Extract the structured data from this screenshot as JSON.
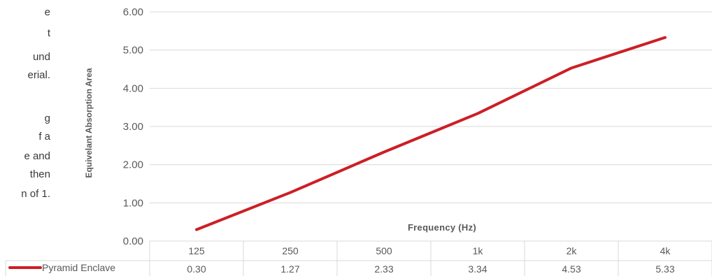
{
  "side_text": [
    "e",
    "t",
    "und",
    "erial.",
    "",
    "g",
    "f a",
    "e and",
    "then",
    "n of 1."
  ],
  "chart_data": {
    "type": "line",
    "title": "",
    "xlabel": "Frequency (Hz)",
    "ylabel": "Equivelant Absorption Area",
    "categories": [
      "125",
      "250",
      "500",
      "1k",
      "2k",
      "4k"
    ],
    "ylim": [
      0,
      6
    ],
    "yticks": [
      "0.00",
      "1.00",
      "2.00",
      "3.00",
      "4.00",
      "5.00",
      "6.00"
    ],
    "grid": true,
    "series": [
      {
        "name": "Pyramid Enclave",
        "values": [
          0.3,
          1.27,
          2.33,
          3.34,
          4.53,
          5.33
        ],
        "labels": [
          "0.30",
          "1.27",
          "2.33",
          "3.34",
          "4.53",
          "5.33"
        ],
        "color": "#cc1f26"
      }
    ],
    "gridColor": "#d9d9d9",
    "data_table": true
  }
}
